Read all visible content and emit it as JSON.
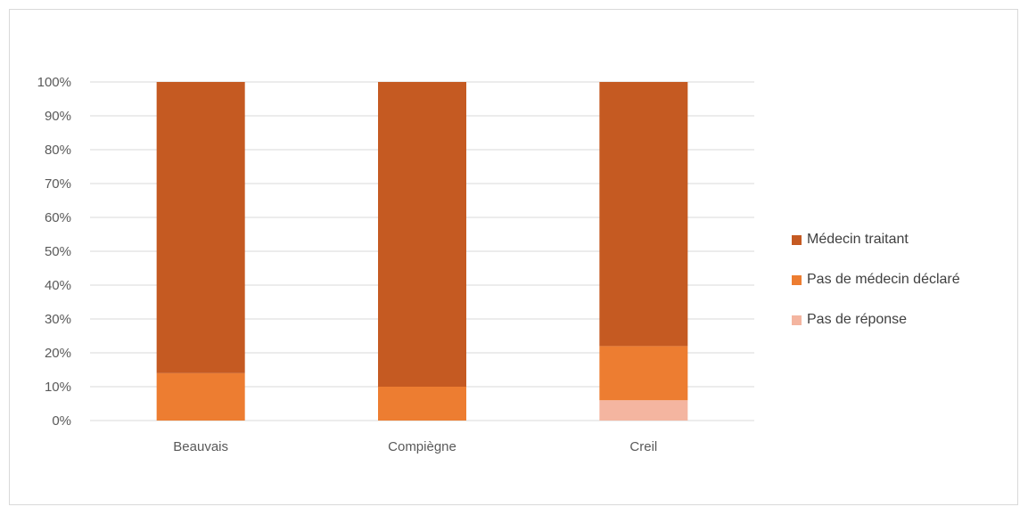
{
  "chart_data": {
    "type": "bar",
    "stacked": true,
    "percent": true,
    "title": "",
    "xlabel": "",
    "ylabel": "",
    "ylim": [
      0,
      100
    ],
    "yticks": [
      "0%",
      "10%",
      "20%",
      "30%",
      "40%",
      "50%",
      "60%",
      "70%",
      "80%",
      "90%",
      "100%"
    ],
    "categories": [
      "Beauvais",
      "Compiègne",
      "Creil"
    ],
    "series": [
      {
        "name": "Pas de réponse",
        "color": "#f4b5a0",
        "values": [
          0,
          0,
          6
        ]
      },
      {
        "name": "Pas de médecin déclaré",
        "color": "#ed7d31",
        "values": [
          14,
          10,
          16
        ]
      },
      {
        "name": "Médecin traitant",
        "color": "#c55a22",
        "values": [
          86,
          90,
          78
        ]
      }
    ],
    "legend_order": [
      2,
      1,
      0
    ],
    "legend_position": "right",
    "grid": true
  }
}
